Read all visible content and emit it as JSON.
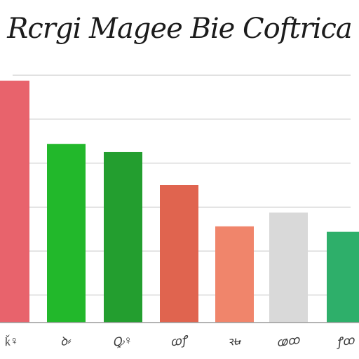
{
  "chart_data": {
    "type": "bar",
    "title": "Rcrgi Magee Bie Coftrica",
    "xlabel": "",
    "ylabel": "",
    "categories": [
      "ǩ♀",
      "ꝺ⸗",
      "Ꝙ♀",
      "ꭃꝭ",
      "ꝛꭏ",
      "ꭄꝏ",
      "ꝭꝏ"
    ],
    "values": [
      88,
      65,
      62,
      50,
      35,
      40,
      33
    ],
    "colors": [
      "#e8636c",
      "#22b82b",
      "#239e2f",
      "#e0644f",
      "#f0856b",
      "#d9d9d9",
      "#2eaf6a"
    ],
    "ylim": [
      0,
      100
    ],
    "grid": true,
    "legend": "none"
  }
}
